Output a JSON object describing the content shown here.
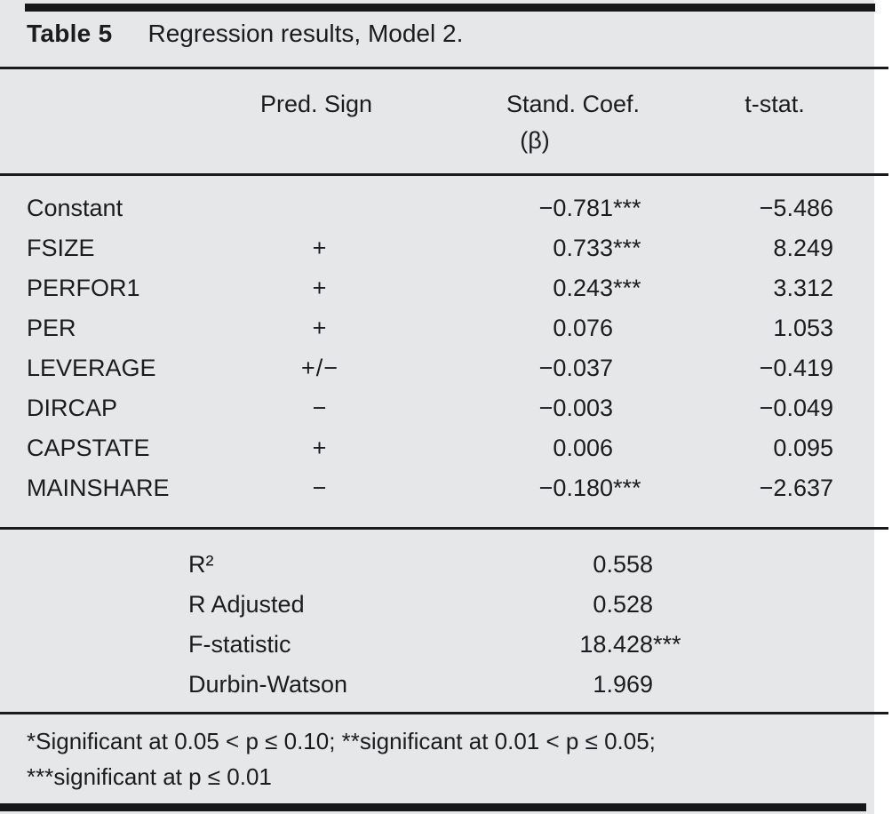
{
  "table": {
    "label": "Table 5",
    "caption": "Regression results, Model 2.",
    "header": {
      "pred_sign": "Pred. Sign",
      "stand_coef": "Stand. Coef.",
      "beta": "(β)",
      "t_stat": "t-stat."
    },
    "rows": [
      {
        "variable": "Constant",
        "pred_sign": "",
        "coef": "−0.781",
        "coef_stars": "***",
        "t_stat": "−5.486"
      },
      {
        "variable": "FSIZE",
        "pred_sign": "+",
        "coef": "0.733",
        "coef_stars": "***",
        "t_stat": "8.249"
      },
      {
        "variable": "PERFOR1",
        "pred_sign": "+",
        "coef": "0.243",
        "coef_stars": "***",
        "t_stat": "3.312"
      },
      {
        "variable": "PER",
        "pred_sign": "+",
        "coef": "0.076",
        "coef_stars": "",
        "t_stat": "1.053"
      },
      {
        "variable": "LEVERAGE",
        "pred_sign": "+/−",
        "coef": "−0.037",
        "coef_stars": "",
        "t_stat": "−0.419"
      },
      {
        "variable": "DIRCAP",
        "pred_sign": "−",
        "coef": "−0.003",
        "coef_stars": "",
        "t_stat": "−0.049"
      },
      {
        "variable": "CAPSTATE",
        "pred_sign": "+",
        "coef": "0.006",
        "coef_stars": "",
        "t_stat": "0.095"
      },
      {
        "variable": "MAINSHARE",
        "pred_sign": "−",
        "coef": "−0.180",
        "coef_stars": "***",
        "t_stat": "−2.637"
      }
    ],
    "summary": [
      {
        "label": "R²",
        "value": "0.558",
        "stars": ""
      },
      {
        "label": "R Adjusted",
        "value": "0.528",
        "stars": ""
      },
      {
        "label": "F-statistic",
        "value": "18.428",
        "stars": "***"
      },
      {
        "label": "Durbin-Watson",
        "value": "1.969",
        "stars": ""
      }
    ],
    "footnotes": [
      "*Significant at 0.05 < p ≤ 0.10; **significant at 0.01 < p ≤ 0.05;",
      "***significant at p ≤ 0.01"
    ],
    "colors": {
      "panel_background": "#e6e7e8",
      "text": "#1c1c1f",
      "rule": "#1a1a1d"
    }
  }
}
